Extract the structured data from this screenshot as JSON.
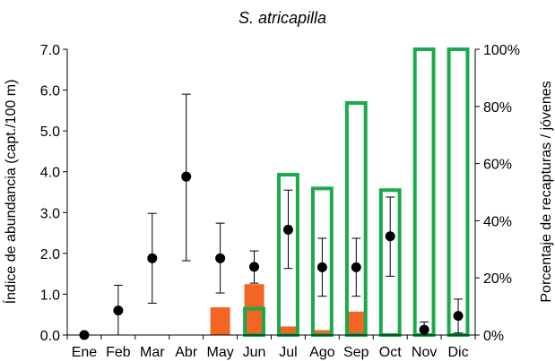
{
  "chart_data": {
    "type": "bar",
    "title": "S. atricapilla",
    "ylabel": "Índice de abundancia (capt./100 m)",
    "ylabel_right": "Porcentaje de recapturas / jóvenes",
    "categories": [
      "Ene",
      "Feb",
      "Mar",
      "Abr",
      "May",
      "Jun",
      "Jul",
      "Ago",
      "Sep",
      "Oct",
      "Nov",
      "Dic"
    ],
    "ylim": [
      0,
      7
    ],
    "ylim_right": [
      0,
      100
    ],
    "yticks": [
      "0.0",
      "1.0",
      "2.0",
      "3.0",
      "4.0",
      "5.0",
      "6.0",
      "7.0"
    ],
    "yticks_right": [
      "0%",
      "20%",
      "40%",
      "60%",
      "80%",
      "100%"
    ],
    "grid": false,
    "colors": {
      "filled_bars": "#f26522",
      "outline_bars": "#1aaa4b",
      "points": "#000000"
    },
    "series": [
      {
        "type": "bar",
        "axis": "right",
        "style": "filled",
        "values": [
          0,
          0,
          0,
          0,
          9.7,
          17.8,
          3.0,
          1.7,
          8.2,
          0,
          0,
          0
        ]
      },
      {
        "type": "bar",
        "axis": "right",
        "style": "outline",
        "values": [
          0,
          0,
          0,
          0,
          0,
          9.2,
          56.1,
          51.3,
          81.2,
          50.7,
          100,
          100
        ]
      },
      {
        "type": "point",
        "axis": "left",
        "values": [
          0,
          0.6,
          1.88,
          3.88,
          1.88,
          1.67,
          2.58,
          1.66,
          1.66,
          2.42,
          0.13,
          0.47
        ],
        "error_low": [
          null,
          0.0,
          0.78,
          1.82,
          1.03,
          1.27,
          1.63,
          0.95,
          0.95,
          1.44,
          0.0,
          0.05
        ],
        "error_high": [
          null,
          1.22,
          2.98,
          5.9,
          2.74,
          2.06,
          3.55,
          2.37,
          2.37,
          3.38,
          0.32,
          0.88
        ]
      }
    ]
  }
}
